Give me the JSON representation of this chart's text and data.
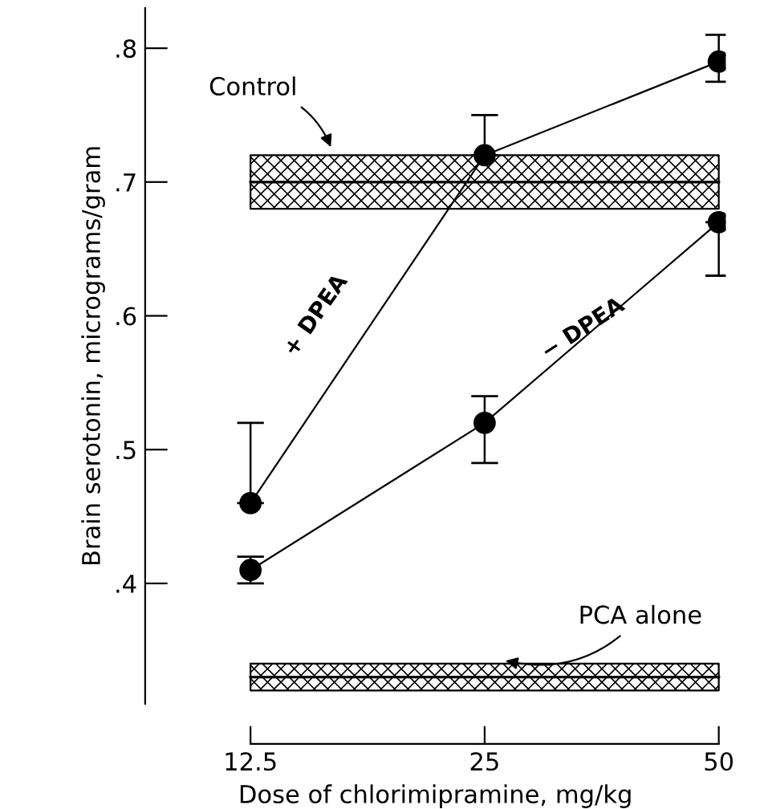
{
  "chart_data": {
    "type": "line",
    "xlabel": "Dose of chlorimipramine, mg/kg",
    "ylabel": "Brain serotonin, micrograms/gram",
    "categories": [
      "12.5",
      "25",
      "50"
    ],
    "series": [
      {
        "name": "+ DPEA",
        "color": "#000000",
        "values": [
          0.46,
          0.72,
          0.79
        ],
        "errors": [
          [
            0.46,
            0.52
          ],
          [
            0.72,
            0.75
          ],
          [
            0.775,
            0.81
          ]
        ]
      },
      {
        "name": "− DPEA",
        "color": "#000000",
        "values": [
          0.41,
          0.52,
          0.67
        ],
        "errors": [
          [
            0.4,
            0.42
          ],
          [
            0.49,
            0.54
          ],
          [
            0.63,
            0.67
          ]
        ]
      }
    ],
    "bands": [
      {
        "axis": "y",
        "from": 0.68,
        "to": 0.72,
        "label": "Control",
        "color": "#000000"
      },
      {
        "axis": "y",
        "from": 0.32,
        "to": 0.34,
        "label": "PCA alone",
        "color": "#000000"
      }
    ],
    "ref_lines": [
      {
        "axis": "y",
        "value": 0.7,
        "color": "#000000"
      },
      {
        "axis": "y",
        "value": 0.33,
        "color": "#000000"
      }
    ],
    "ylim": [
      0.31,
      0.83
    ],
    "yticks": [
      {
        "value": 0.4,
        "label": ".4"
      },
      {
        "value": 0.5,
        "label": ".5"
      },
      {
        "value": 0.6,
        "label": ".6"
      },
      {
        "value": 0.7,
        "label": ".7"
      },
      {
        "value": 0.8,
        "label": ".8"
      }
    ],
    "grid": false,
    "marker": "circle",
    "line_style": "solid"
  }
}
